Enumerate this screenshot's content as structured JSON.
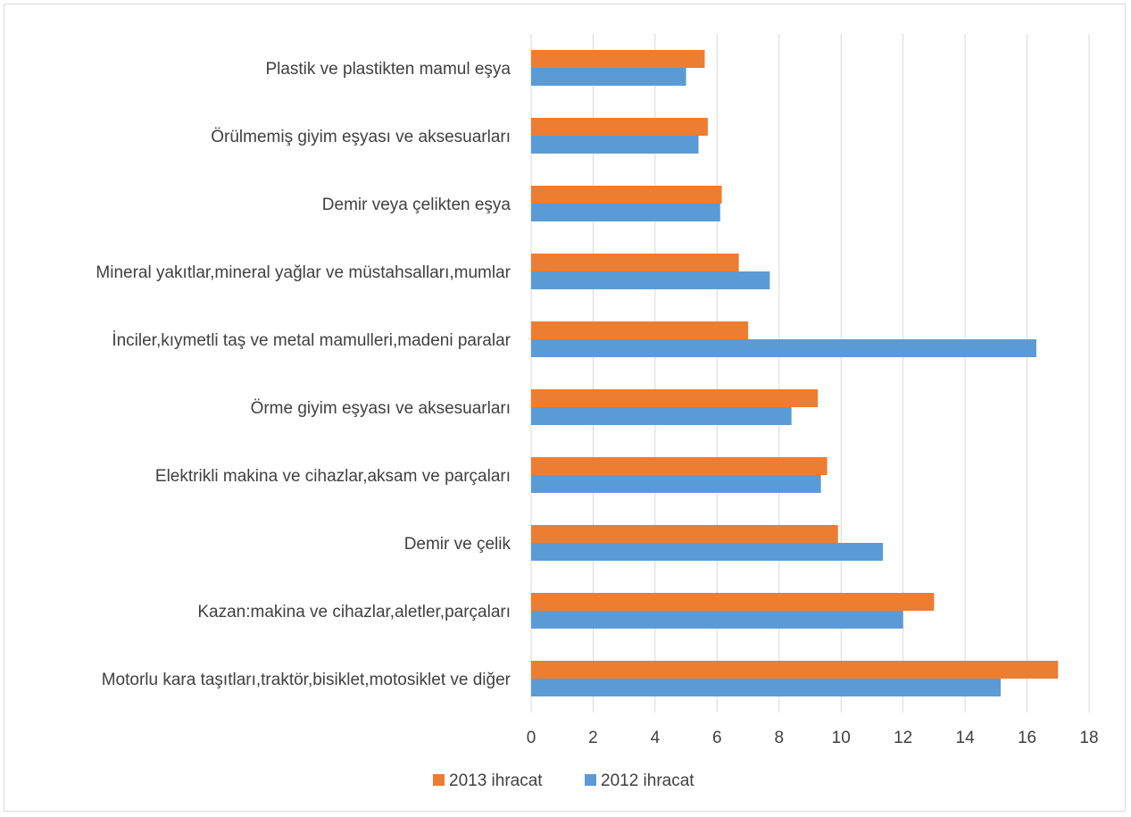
{
  "chart_data": {
    "type": "bar",
    "orientation": "horizontal",
    "categories": [
      "Motorlu kara taşıtları,traktör,bisiklet,motosiklet ve diğer",
      "Kazan:makina ve cihazlar,aletler,parçaları",
      "Demir ve çelik",
      "Elektrikli makina ve cihazlar,aksam ve parçaları",
      "Örme giyim eşyası ve aksesuarları",
      "İnciler,kıymetli taş ve metal mamulleri,madeni paralar",
      "Mineral yakıtlar,mineral yağlar ve müstahsalları,mumlar",
      "Demir veya çelikten eşya",
      "Örülmemiş giyim eşyası ve aksesuarları",
      "Plastik ve plastikten mamul eşya"
    ],
    "series": [
      {
        "name": "2013 ihracat",
        "color": "#ed7d31",
        "values": [
          17.0,
          13.0,
          9.9,
          9.55,
          9.25,
          7.0,
          6.7,
          6.15,
          5.7,
          5.6
        ]
      },
      {
        "name": "2012 ihracat",
        "color": "#5b9bd5",
        "values": [
          15.15,
          12.0,
          11.35,
          9.35,
          8.4,
          16.3,
          7.7,
          6.1,
          5.4,
          5.0
        ]
      }
    ],
    "xlim": [
      0,
      18
    ],
    "xticks": [
      "0",
      "2",
      "4",
      "6",
      "8",
      "10",
      "12",
      "14",
      "16",
      "18"
    ],
    "grid": "vertical",
    "legend_position": "bottom",
    "title": "",
    "xlabel": "",
    "ylabel": ""
  }
}
